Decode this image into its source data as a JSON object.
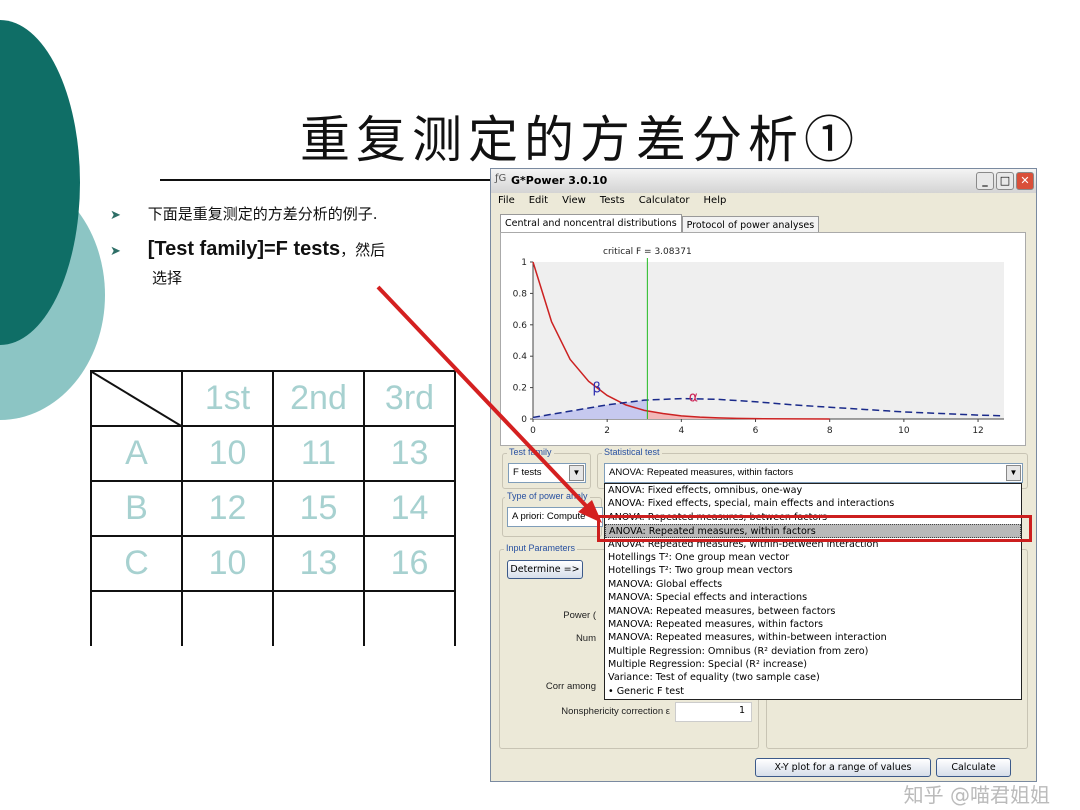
{
  "slide": {
    "title": "重复测定的方差分析①",
    "bullets": [
      "下面是重复测定的方差分析的例子.",
      "[Test family]=F tests，然后选择"
    ],
    "bullet_line2_part1": "[Test family]=F tests",
    "bullet_line2_part2": "，然后",
    "bullet_line2_part3": "选择",
    "table": {
      "headers": [
        "",
        "1st",
        "2nd",
        "3rd"
      ],
      "rows": [
        [
          "A",
          "10",
          "11",
          "13"
        ],
        [
          "B",
          "12",
          "15",
          "14"
        ],
        [
          "C",
          "10",
          "13",
          "16"
        ],
        [
          "",
          "",
          "",
          ""
        ]
      ]
    },
    "watermark": "知乎 @喵君姐姐",
    "colors": {
      "dark_teal": "#0f6e66",
      "light_teal": "#8cc5c4",
      "table_text": "#a7d1d0",
      "arrow": "#d42020",
      "highlight": "#cc1f1f"
    }
  },
  "app": {
    "title": "G*Power 3.0.10",
    "icon": "gpower-logo-icon",
    "menu": [
      "File",
      "Edit",
      "View",
      "Tests",
      "Calculator",
      "Help"
    ],
    "tabs": [
      "Central and noncentral distributions",
      "Protocol of power analyses"
    ],
    "chart_data": {
      "type": "line",
      "annotation": "critical F = 3.08371",
      "critical_f": 3.08371,
      "xlim": [
        0,
        12.7
      ],
      "ylim": [
        0,
        1
      ],
      "xticks": [
        "0",
        "2",
        "4",
        "6",
        "8",
        "10",
        "12"
      ],
      "yticks": [
        "0",
        "0.2",
        "0.4",
        "0.6",
        "0.8",
        "1"
      ],
      "labels": {
        "beta": "β",
        "alpha": "α"
      },
      "series": [
        {
          "style": "solid",
          "color": "#cc2222",
          "x": [
            0,
            0.5,
            1,
            1.5,
            2,
            2.5,
            3,
            3.5,
            4,
            4.5,
            5,
            5.5,
            6,
            7,
            8
          ],
          "y": [
            1,
            0.62,
            0.38,
            0.24,
            0.15,
            0.09,
            0.055,
            0.035,
            0.02,
            0.012,
            0.007,
            0.004,
            0.002,
            0.001,
            0
          ]
        },
        {
          "style": "dashed",
          "color": "#1a2a8a",
          "x": [
            0,
            1,
            2,
            3,
            4,
            5,
            6,
            7,
            8,
            9,
            10,
            11,
            12,
            12.7
          ],
          "y": [
            0.01,
            0.05,
            0.09,
            0.12,
            0.13,
            0.125,
            0.11,
            0.09,
            0.075,
            0.06,
            0.045,
            0.035,
            0.025,
            0.02
          ]
        }
      ]
    },
    "test_family": {
      "label": "Test family",
      "value": "F tests"
    },
    "statistical_test": {
      "label": "Statistical test",
      "value": "ANOVA: Repeated measures, within factors",
      "options": [
        "ANOVA: Fixed effects, omnibus, one-way",
        "ANOVA: Fixed effects, special, main effects and interactions",
        "ANOVA: Repeated measures, between factors",
        "ANOVA: Repeated measures, within factors",
        "ANOVA: Repeated measures, within-between interaction",
        "Hotellings T²: One group mean vector",
        "Hotellings T²: Two group mean vectors",
        "MANOVA: Global effects",
        "MANOVA: Special effects and interactions",
        "MANOVA: Repeated measures, between factors",
        "MANOVA: Repeated measures, within factors",
        "MANOVA: Repeated measures, within-between interaction",
        "Multiple Regression: Omnibus (R² deviation from zero)",
        "Multiple Regression: Special (R² increase)",
        "Variance: Test of equality (two sample case)",
        "• Generic F test"
      ],
      "selected_index": 3
    },
    "power_analysis": {
      "label": "Type of power analy",
      "value": "A priori: Compute"
    },
    "input_parameters": {
      "label": "Input Parameters",
      "determine": "Determine =>",
      "fields": [
        {
          "label": "Power (",
          "value": ""
        },
        {
          "label": "Num",
          "value": ""
        },
        {
          "label": "Corr among",
          "value": ""
        },
        {
          "label": "Nonsphericity correction ε",
          "value": "1"
        }
      ]
    },
    "buttons": {
      "xy_plot": "X-Y plot for a range of values",
      "calculate": "Calculate"
    }
  }
}
